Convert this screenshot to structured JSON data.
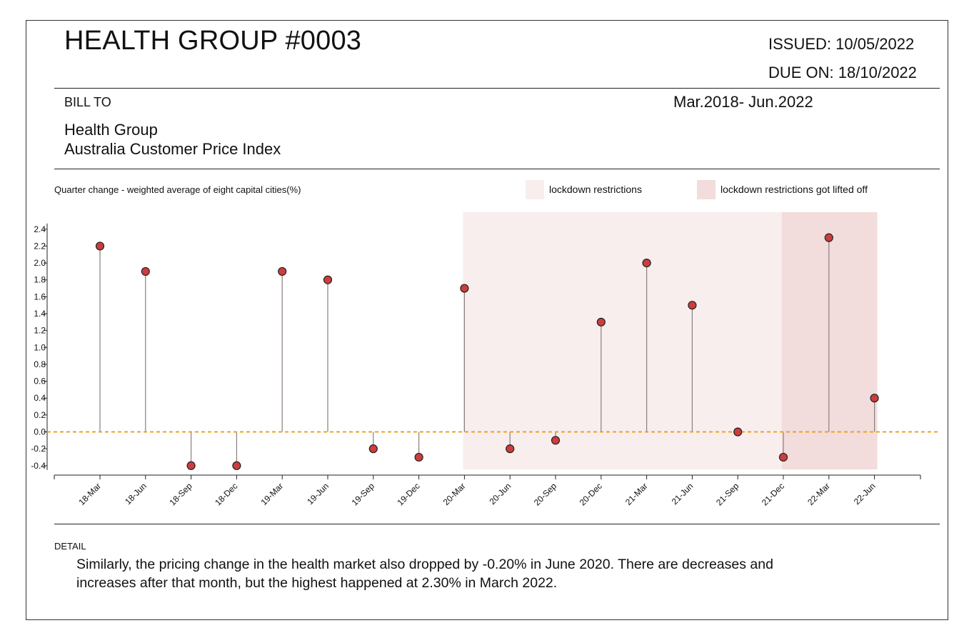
{
  "header": {
    "title": "HEALTH GROUP #0003",
    "issued": "ISSUED: 10/05/2022",
    "due": "DUE ON: 18/10/2022"
  },
  "bill": {
    "label": "BILL TO",
    "period": "Mar.2018- Jun.2022",
    "name_line1": "Health Group",
    "name_line2": "Australia Customer Price Index"
  },
  "chart_data": {
    "type": "lollipop",
    "title": "Quarter change - weighted average of eight capital cities(%)",
    "categories": [
      "18-Mar",
      "18-Jun",
      "18-Sep",
      "18-Dec",
      "19-Mar",
      "19-Jun",
      "19-Sep",
      "19-Dec",
      "20-Mar",
      "20-Jun",
      "20-Sep",
      "20-Dec",
      "21-Mar",
      "21-Jun",
      "21-Sep",
      "21-Dec",
      "22-Mar",
      "22-Jun"
    ],
    "values": [
      2.2,
      1.9,
      -0.4,
      -0.4,
      1.9,
      1.8,
      -0.2,
      -0.3,
      1.7,
      -0.2,
      -0.1,
      1.3,
      2.0,
      1.5,
      0.0,
      -0.3,
      2.3,
      0.4
    ],
    "y_ticks": [
      "-0.4",
      "-0.2",
      "0.0",
      "0.2",
      "0.4",
      "0.6",
      "0.8",
      "1.0",
      "1.2",
      "1.4",
      "1.6",
      "1.8",
      "2.0",
      "2.2",
      "2.4"
    ],
    "ylim": [
      -0.4,
      2.4
    ],
    "baseline": 0,
    "legend": [
      {
        "label": "lockdown restrictions",
        "color": "#f8eeee"
      },
      {
        "label": "lockdown restrictions got lifted off",
        "color": "#f2dcdc"
      }
    ],
    "shaded_ranges": [
      {
        "from": "20-Mar",
        "to": "21-Dec",
        "legend_index": 0
      },
      {
        "from": "21-Dec",
        "to": "22-Jun",
        "legend_index": 1
      }
    ],
    "colors": {
      "marker": "#cc3d3d",
      "stem": "#8a7f7f",
      "baseline": "#f0a020"
    }
  },
  "detail": {
    "label": "DETAIL",
    "text": "Similarly, the pricing change in the health market also dropped by -0.20% in June 2020. There are decreases and increases after that month, but the highest happened at 2.30% in March 2022."
  }
}
